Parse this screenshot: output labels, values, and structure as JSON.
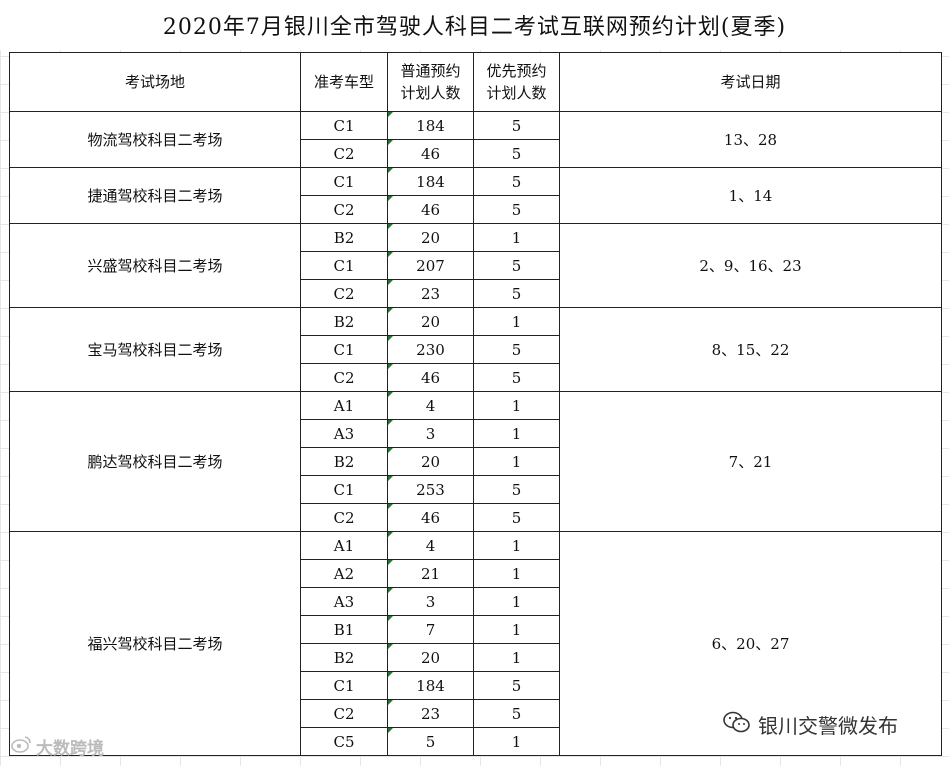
{
  "title": "2020年7月银川全市驾驶人科目二考试互联网预约计划(夏季)",
  "headers": {
    "site": "考试场地",
    "car": "准考车型",
    "normal_l1": "普通预约",
    "normal_l2": "计划人数",
    "priority_l1": "优先预约",
    "priority_l2": "计划人数",
    "dates": "考试日期"
  },
  "sites": [
    {
      "name": "物流驾校科目二考场",
      "dates": "13、28",
      "rows": [
        {
          "car": "C1",
          "normal": "184",
          "priority": "5"
        },
        {
          "car": "C2",
          "normal": "46",
          "priority": "5"
        }
      ]
    },
    {
      "name": "捷通驾校科目二考场",
      "dates": "1、14",
      "rows": [
        {
          "car": "C1",
          "normal": "184",
          "priority": "5"
        },
        {
          "car": "C2",
          "normal": "46",
          "priority": "5"
        }
      ]
    },
    {
      "name": "兴盛驾校科目二考场",
      "dates": "2、9、16、23",
      "rows": [
        {
          "car": "B2",
          "normal": "20",
          "priority": "1"
        },
        {
          "car": "C1",
          "normal": "207",
          "priority": "5"
        },
        {
          "car": "C2",
          "normal": "23",
          "priority": "5"
        }
      ]
    },
    {
      "name": "宝马驾校科目二考场",
      "dates": "8、15、22",
      "rows": [
        {
          "car": "B2",
          "normal": "20",
          "priority": "1"
        },
        {
          "car": "C1",
          "normal": "230",
          "priority": "5"
        },
        {
          "car": "C2",
          "normal": "46",
          "priority": "5"
        }
      ]
    },
    {
      "name": "鹏达驾校科目二考场",
      "dates": "7、21",
      "rows": [
        {
          "car": "A1",
          "normal": "4",
          "priority": "1"
        },
        {
          "car": "A3",
          "normal": "3",
          "priority": "1"
        },
        {
          "car": "B2",
          "normal": "20",
          "priority": "1"
        },
        {
          "car": "C1",
          "normal": "253",
          "priority": "5"
        },
        {
          "car": "C2",
          "normal": "46",
          "priority": "5"
        }
      ]
    },
    {
      "name": "福兴驾校科目二考场",
      "dates": "6、20、27",
      "rows": [
        {
          "car": "A1",
          "normal": "4",
          "priority": "1"
        },
        {
          "car": "A2",
          "normal": "21",
          "priority": "1"
        },
        {
          "car": "A3",
          "normal": "3",
          "priority": "1"
        },
        {
          "car": "B1",
          "normal": "7",
          "priority": "1"
        },
        {
          "car": "B2",
          "normal": "20",
          "priority": "1"
        },
        {
          "car": "C1",
          "normal": "184",
          "priority": "5"
        },
        {
          "car": "C2",
          "normal": "23",
          "priority": "5"
        },
        {
          "car": "C5",
          "normal": "5",
          "priority": "1"
        }
      ]
    }
  ],
  "watermark_left": "大数跨境",
  "watermark_right": "银川交警微发布",
  "icons": {
    "left": "weibo-icon",
    "right": "wechat-icon"
  }
}
